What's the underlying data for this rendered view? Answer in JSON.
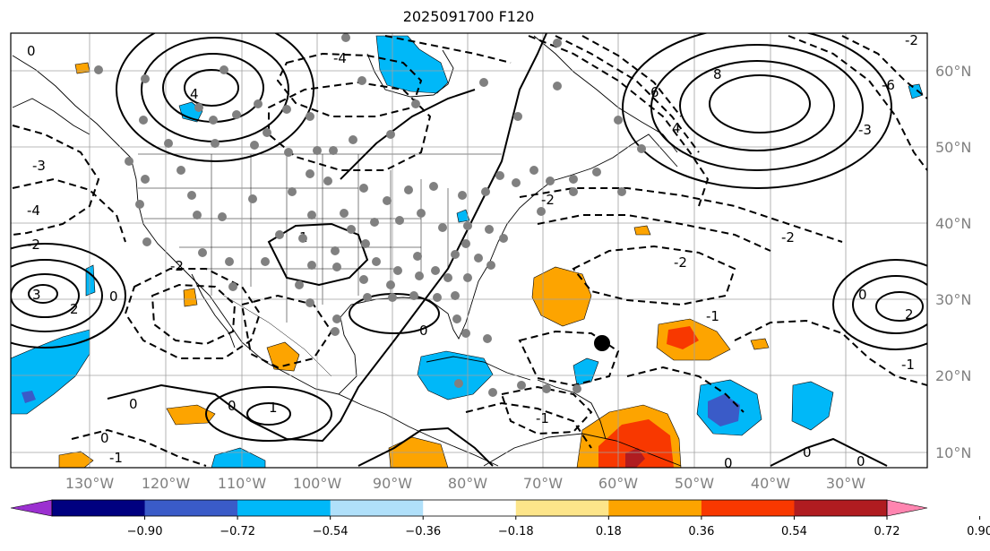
{
  "title": "2025091700 F120",
  "map": {
    "lon_labels": [
      "130°W",
      "120°W",
      "110°W",
      "100°W",
      "90°W",
      "80°W",
      "70°W",
      "60°W",
      "50°W",
      "40°W",
      "30°W"
    ],
    "lat_labels": [
      "60°N",
      "50°N",
      "40°N",
      "30°N",
      "20°N",
      "10°N"
    ],
    "contour_labels": [
      "0",
      "1",
      "2",
      "3",
      "4",
      "6",
      "8",
      "-1",
      "-2",
      "-3",
      "-4",
      "-6"
    ],
    "colors": {
      "coast": "#000000",
      "grid": "#a0a0a0",
      "station_dot": "#808080",
      "marker": "#000000"
    }
  },
  "colorbar": {
    "ticks": [
      "−0.90",
      "−0.72",
      "−0.54",
      "−0.36",
      "−0.18",
      "0.18",
      "0.36",
      "0.54",
      "0.72",
      "0.90"
    ],
    "colors": [
      "#9b30d0",
      "#000080",
      "#3a5bc8",
      "#00b8f8",
      "#b0e0fa",
      "#ffffff",
      "#fde58a",
      "#fda400",
      "#f83800",
      "#b01c20",
      "#ff85b0"
    ]
  }
}
